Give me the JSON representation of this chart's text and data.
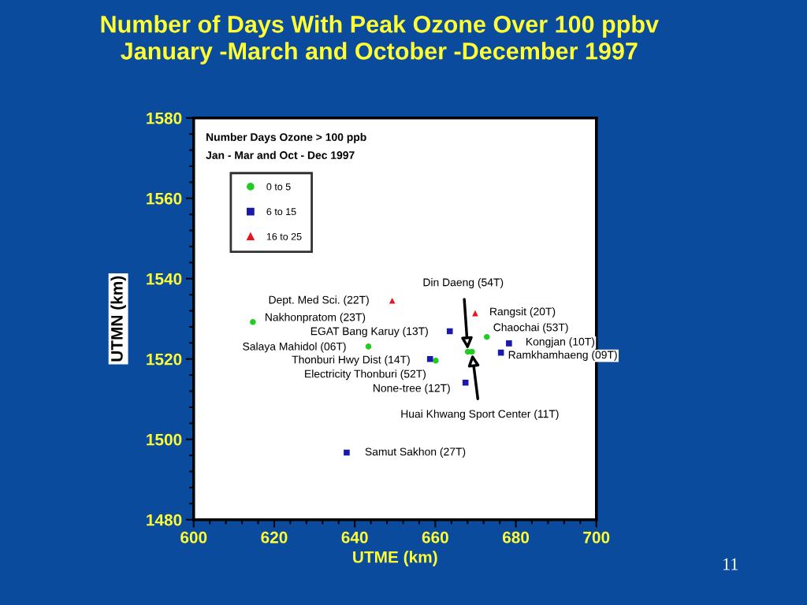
{
  "chart_data": {
    "type": "scatter",
    "title": "Number of Days With Peak Ozone Over 100 ppbv\nJanuary -March and October -December 1997",
    "xlabel": "UTME (km)",
    "ylabel": "UTMN (km)",
    "xlim": [
      600,
      700
    ],
    "xticks": [
      600,
      620,
      640,
      660,
      680,
      700
    ],
    "ylim": [
      1480,
      1580
    ],
    "yticks": [
      1480,
      1500,
      1520,
      1540,
      1560,
      1580
    ],
    "grid": false,
    "legend": "top left",
    "series": [
      {
        "name": "0 to 5",
        "marker": "circle",
        "color": "#22cc22",
        "x": [
          614.7,
          643.4,
          660.1,
          668.1,
          669.1,
          672.8
        ],
        "values": [
          1529.2,
          1523.1,
          1519.6,
          1521.8,
          1521.8,
          1525.5
        ]
      },
      {
        "name": "6 to 15",
        "marker": "square",
        "color": "#1a1aa8",
        "x": [
          663.6,
          658.7,
          678.3,
          676.3,
          667.5,
          638.0
        ],
        "values": [
          1526.9,
          1520.0,
          1523.9,
          1521.6,
          1514.1,
          1496.7
        ]
      },
      {
        "name": "16 to 25",
        "marker": "triangle",
        "color": "#e8141e",
        "x": [
          649.3,
          669.9
        ],
        "values": [
          1534.5,
          1531.4
        ]
      }
    ],
    "annotations": [
      "Number Days Ozone > 100 ppb",
      "Jan - Mar and Oct - Dec 1997",
      "11",
      {
        "text": "Dept. Med Sci. (22T)",
        "x": 649.3,
        "y": 1534.5
      },
      {
        "text": "Nakhonpratom (23T)",
        "x": 614.7,
        "y": 1529.2
      },
      {
        "text": "EGAT Bang Karuy (13T)",
        "x": 663.6,
        "y": 1526.9
      },
      {
        "text": "Salaya Mahidol (06T)",
        "x": 643.4,
        "y": 1523.1
      },
      {
        "text": "Thonburi Hwy Dist (14T)",
        "x": 658.7,
        "y": 1520.0
      },
      {
        "text": "Electricity Thonburi (52T)",
        "x": 660.1,
        "y": 1519.6
      },
      {
        "text": "None-tree (12T)",
        "x": 667.5,
        "y": 1514.1
      },
      {
        "text": "Din Daeng (54T)",
        "x": 668.1,
        "y": 1521.8
      },
      {
        "text": "Rangsit (20T)",
        "x": 669.9,
        "y": 1531.4
      },
      {
        "text": "Chaochai (53T)",
        "x": 672.8,
        "y": 1525.5
      },
      {
        "text": "Kongjan (10T)",
        "x": 678.3,
        "y": 1523.9
      },
      {
        "text": "Ramkhamhaeng (09T)",
        "x": 676.3,
        "y": 1521.6
      },
      {
        "text": "Huai Khwang Sport Center (11T)",
        "x": 669.1,
        "y": 1521.8
      },
      {
        "text": "Samut Sakhon (27T)",
        "x": 638.0,
        "y": 1496.7
      }
    ]
  }
}
